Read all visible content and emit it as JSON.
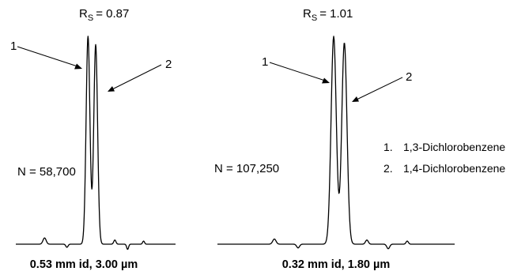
{
  "chart_data": [
    {
      "type": "line",
      "title": "",
      "resolution": {
        "prefix": "R",
        "subscript": "S",
        "value": "= 0.87"
      },
      "plate_count": "N = 58,700",
      "peaks": [
        {
          "label": "1",
          "retention": 0.5,
          "height": 1.0,
          "width": 0.012
        },
        {
          "label": "2",
          "retention": 0.6,
          "height": 0.96,
          "width": 0.012
        }
      ],
      "caption": "0.53 mm id, 3.00 µm",
      "xlabel": "",
      "ylabel": ""
    },
    {
      "type": "line",
      "title": "",
      "resolution": {
        "prefix": "R",
        "subscript": "S",
        "value": "= 1.01"
      },
      "plate_count": "N = 107,250",
      "peaks": [
        {
          "label": "1",
          "retention": 0.5,
          "height": 1.0,
          "width": 0.011
        },
        {
          "label": "2",
          "retention": 0.6,
          "height": 0.97,
          "width": 0.011
        }
      ],
      "caption": "0.32 mm id, 1.80 µm",
      "xlabel": "",
      "ylabel": ""
    }
  ],
  "legend": [
    {
      "number": "1.",
      "name": "1,3-Dichlorobenzene"
    },
    {
      "number": "2.",
      "name": "1,4-Dichlorobenzene"
    }
  ]
}
